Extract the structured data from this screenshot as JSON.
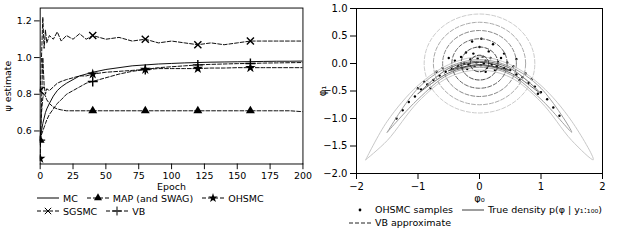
{
  "chart_data": [
    {
      "type": "line",
      "xlabel": "Epoch",
      "ylabel": "ψ estimate",
      "xlim": [
        0,
        200
      ],
      "ylim": [
        0.42,
        1.27
      ],
      "xticks": [
        0,
        25,
        50,
        75,
        100,
        125,
        150,
        175,
        200
      ],
      "yticks": [
        0.6,
        0.8,
        {
          "value": 1.0,
          "label": "1.0"
        },
        1.2
      ],
      "legend": "bottom",
      "x": [
        0,
        1,
        2,
        3,
        4,
        5,
        7,
        10,
        13,
        16,
        20,
        25,
        30,
        35,
        40,
        50,
        60,
        70,
        80,
        90,
        100,
        110,
        120,
        130,
        140,
        150,
        160,
        170,
        180,
        190,
        200
      ],
      "series": [
        {
          "name": "MC",
          "color": "#000000",
          "line_style": "solid",
          "values": [
            0.55,
            0.6,
            0.64,
            0.67,
            0.7,
            0.72,
            0.75,
            0.79,
            0.82,
            0.84,
            0.86,
            0.88,
            0.9,
            0.91,
            0.92,
            0.935,
            0.945,
            0.955,
            0.96,
            0.965,
            0.968,
            0.971,
            0.973,
            0.975,
            0.976,
            0.977,
            0.978,
            0.979,
            0.98,
            0.98,
            0.981
          ]
        },
        {
          "name": "MAP (and SWAG)",
          "color": "#000000",
          "line_style": "dashed",
          "marker": "triangle",
          "values": [
            0.55,
            0.7,
            0.78,
            0.8,
            0.79,
            0.77,
            0.75,
            0.73,
            0.72,
            0.715,
            0.71,
            0.71,
            0.71,
            0.71,
            0.71,
            0.71,
            0.71,
            0.71,
            0.71,
            0.71,
            0.71,
            0.71,
            0.71,
            0.71,
            0.71,
            0.71,
            0.71,
            0.71,
            0.71,
            0.71,
            0.705
          ]
        },
        {
          "name": "OHSMC",
          "color": "#000000",
          "line_style": "dashed",
          "marker": "star",
          "values": [
            0.45,
            0.75,
            1.0,
            0.85,
            0.8,
            0.83,
            0.82,
            0.84,
            0.86,
            0.87,
            0.88,
            0.89,
            0.9,
            0.9,
            0.91,
            0.92,
            0.925,
            0.93,
            0.935,
            0.94,
            0.94,
            0.94,
            0.94,
            0.943,
            0.943,
            0.945,
            0.945,
            0.945,
            0.945,
            0.945,
            0.945
          ]
        },
        {
          "name": "SGSMC",
          "color": "#000000",
          "line_style": "dashed",
          "marker": "x",
          "values": [
            0.82,
            1.0,
            1.22,
            1.05,
            1.15,
            1.08,
            1.12,
            1.1,
            1.14,
            1.09,
            1.12,
            1.1,
            1.13,
            1.1,
            1.12,
            1.1,
            1.11,
            1.09,
            1.1,
            1.08,
            1.09,
            1.08,
            1.07,
            1.08,
            1.07,
            1.08,
            1.09,
            1.09,
            1.09,
            1.09,
            1.09
          ]
        },
        {
          "name": "VB",
          "color": "#000000",
          "line_style": "dashed",
          "marker": "plus",
          "values": [
            0.55,
            0.58,
            0.6,
            0.62,
            0.64,
            0.66,
            0.69,
            0.72,
            0.75,
            0.77,
            0.8,
            0.82,
            0.84,
            0.86,
            0.87,
            0.89,
            0.91,
            0.925,
            0.935,
            0.945,
            0.95,
            0.955,
            0.96,
            0.963,
            0.965,
            0.967,
            0.968,
            0.97,
            0.971,
            0.972,
            0.973
          ]
        }
      ]
    },
    {
      "type": "scatter",
      "xlabel": "φ₀",
      "ylabel": "φ₁",
      "xlim": [
        -2,
        2
      ],
      "ylim": [
        -2,
        1
      ],
      "xticks": [
        {
          "value": -2,
          "label": "−2"
        },
        {
          "value": -1,
          "label": "−1"
        },
        0,
        1,
        2
      ],
      "yticks": [
        {
          "value": -2,
          "label": "−2.0"
        },
        {
          "value": -1.5,
          "label": "−1.5"
        },
        {
          "value": -1,
          "label": "−1.0"
        },
        {
          "value": -0.5,
          "label": "−0.5"
        },
        {
          "value": 0,
          "label": "0.0"
        },
        {
          "value": 0.5,
          "label": "0.5"
        },
        {
          "value": 1,
          "label": "1.0"
        }
      ],
      "legend": "bottom",
      "series": [
        {
          "name": "OHSMC samples",
          "type": "scatter",
          "color": "#000000",
          "marker": "dot",
          "points": [
            [
              -0.05,
              0.02
            ],
            [
              0.1,
              0.05
            ],
            [
              0.02,
              -0.03
            ],
            [
              -0.15,
              0.08
            ],
            [
              0.2,
              -0.02
            ],
            [
              -0.25,
              0.0
            ],
            [
              0.3,
              0.03
            ],
            [
              -0.35,
              -0.05
            ],
            [
              0.4,
              -0.08
            ],
            [
              -0.45,
              -0.1
            ],
            [
              0.5,
              -0.12
            ],
            [
              -0.55,
              -0.15
            ],
            [
              0.6,
              -0.2
            ],
            [
              -0.65,
              -0.22
            ],
            [
              0.7,
              -0.25
            ],
            [
              -0.75,
              -0.3
            ],
            [
              0.8,
              -0.35
            ],
            [
              -0.85,
              -0.38
            ],
            [
              0.9,
              -0.42
            ],
            [
              -0.95,
              -0.47
            ],
            [
              1.0,
              -0.52
            ],
            [
              -1.05,
              -0.6
            ],
            [
              1.1,
              -0.65
            ],
            [
              -1.15,
              -0.7
            ],
            [
              1.2,
              -0.8
            ],
            [
              -1.25,
              -0.85
            ],
            [
              1.3,
              -0.95
            ],
            [
              -1.35,
              -1.0
            ],
            [
              0.05,
              0.12
            ],
            [
              -0.1,
              0.18
            ],
            [
              0.15,
              0.22
            ],
            [
              0.0,
              0.3
            ],
            [
              -0.2,
              -0.1
            ],
            [
              0.25,
              -0.12
            ],
            [
              0.12,
              -0.08
            ],
            [
              -0.08,
              -0.06
            ],
            [
              0.35,
              0.1
            ],
            [
              -0.3,
              0.12
            ],
            [
              0.45,
              0.02
            ],
            [
              -0.4,
              0.05
            ],
            [
              0.07,
              0.0
            ],
            [
              -0.03,
              0.09
            ],
            [
              0.18,
              0.1
            ],
            [
              -0.18,
              -0.02
            ],
            [
              0.28,
              -0.05
            ],
            [
              -0.28,
              -0.08
            ],
            [
              0.55,
              -0.05
            ],
            [
              -0.6,
              -0.08
            ],
            [
              0.65,
              -0.3
            ],
            [
              -0.7,
              -0.15
            ],
            [
              0.75,
              -0.18
            ],
            [
              -0.8,
              -0.45
            ],
            [
              0.85,
              -0.28
            ],
            [
              -0.9,
              -0.33
            ],
            [
              0.95,
              -0.55
            ],
            [
              -1.0,
              -0.45
            ],
            [
              0.22,
              0.35
            ],
            [
              -0.12,
              0.4
            ],
            [
              0.03,
              0.45
            ],
            [
              0.6,
              0.08
            ],
            [
              -0.5,
              0.1
            ],
            [
              0.1,
              -0.15
            ],
            [
              -0.22,
              0.2
            ],
            [
              0.4,
              0.18
            ]
          ]
        },
        {
          "name": "True density p(φ | y₁:₁₀₀)",
          "type": "contour",
          "line_style": "solid",
          "colors": [
            "#c8c8c8",
            "#a0a0a0",
            "#6e6e6e",
            "#3c3c3c"
          ],
          "contours": [
            [
              [
                -1.85,
                -1.75
              ],
              [
                -1.5,
                -1.05
              ],
              [
                -1.0,
                -0.4
              ],
              [
                -0.5,
                -0.02
              ],
              [
                0,
                0.12
              ],
              [
                0.5,
                -0.02
              ],
              [
                1.0,
                -0.4
              ],
              [
                1.5,
                -1.05
              ],
              [
                1.85,
                -1.75
              ],
              [
                1.5,
                -1.4
              ],
              [
                1.0,
                -0.7
              ],
              [
                0.5,
                -0.25
              ],
              [
                0,
                -0.12
              ],
              [
                -0.5,
                -0.25
              ],
              [
                -1.0,
                -0.7
              ],
              [
                -1.5,
                -1.4
              ]
            ],
            [
              [
                -1.5,
                -1.25
              ],
              [
                -1.0,
                -0.45
              ],
              [
                -0.5,
                -0.06
              ],
              [
                0,
                0.07
              ],
              [
                0.5,
                -0.06
              ],
              [
                1.0,
                -0.45
              ],
              [
                1.5,
                -1.25
              ],
              [
                1.0,
                -0.65
              ],
              [
                0.5,
                -0.2
              ],
              [
                0,
                -0.07
              ],
              [
                -0.5,
                -0.2
              ],
              [
                -1.0,
                -0.65
              ]
            ],
            [
              [
                -1.0,
                -0.55
              ],
              [
                -0.5,
                -0.09
              ],
              [
                0,
                0.04
              ],
              [
                0.5,
                -0.09
              ],
              [
                1.0,
                -0.55
              ],
              [
                0.5,
                -0.17
              ],
              [
                0,
                -0.04
              ],
              [
                -0.5,
                -0.17
              ]
            ],
            [
              [
                -0.5,
                -0.13
              ],
              [
                -0.25,
                -0.02
              ],
              [
                0,
                0.02
              ],
              [
                0.25,
                -0.02
              ],
              [
                0.5,
                -0.13
              ],
              [
                0.25,
                -0.06
              ],
              [
                0,
                -0.02
              ],
              [
                -0.25,
                -0.06
              ]
            ]
          ]
        },
        {
          "name": "VB approximate",
          "type": "circles",
          "line_style": "dashed",
          "center": [
            0,
            0
          ],
          "radii": [
            0.15,
            0.3,
            0.45,
            0.6,
            0.75,
            0.9
          ],
          "colors": [
            "#222222",
            "#444444",
            "#666666",
            "#888888",
            "#aaaaaa",
            "#cccccc"
          ]
        }
      ]
    }
  ]
}
